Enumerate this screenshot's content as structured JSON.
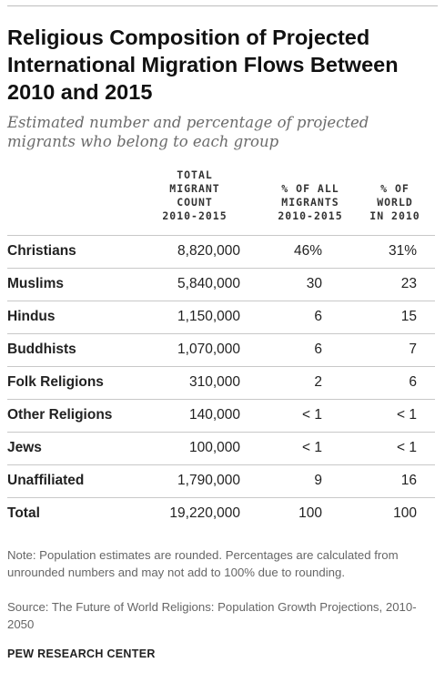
{
  "chart_data": {
    "type": "table",
    "title": "Religious Composition of Projected International Migration Flows Between 2010 and 2015",
    "subtitle": "Estimated number and percentage of projected migrants who belong to each group",
    "columns": [
      {
        "lines": [
          "TOTAL",
          "MIGRANT",
          "COUNT",
          "2010-2015"
        ]
      },
      {
        "lines": [
          "% OF ALL",
          "MIGRANTS",
          "2010-2015"
        ]
      },
      {
        "lines": [
          "% OF",
          "WORLD",
          "IN 2010"
        ]
      }
    ],
    "rows": [
      {
        "name": "Christians",
        "count": "8,820,000",
        "pct_migrants": "46%",
        "pct_world": "31%"
      },
      {
        "name": "Muslims",
        "count": "5,840,000",
        "pct_migrants": "30",
        "pct_world": "23"
      },
      {
        "name": "Hindus",
        "count": "1,150,000",
        "pct_migrants": "6",
        "pct_world": "15"
      },
      {
        "name": "Buddhists",
        "count": "1,070,000",
        "pct_migrants": "6",
        "pct_world": "7"
      },
      {
        "name": "Folk Religions",
        "count": "310,000",
        "pct_migrants": "2",
        "pct_world": "6"
      },
      {
        "name": "Other Religions",
        "count": "140,000",
        "pct_migrants": "< 1",
        "pct_world": "< 1"
      },
      {
        "name": "Jews",
        "count": "100,000",
        "pct_migrants": "< 1",
        "pct_world": "< 1"
      },
      {
        "name": "Unaffiliated",
        "count": "1,790,000",
        "pct_migrants": "9",
        "pct_world": "16"
      },
      {
        "name": "Total",
        "count": "19,220,000",
        "pct_migrants": "100",
        "pct_world": "100"
      }
    ],
    "note": "Note: Population estimates are rounded. Percentages are calculated from unrounded numbers and may not add to 100% due to rounding.",
    "source": "Source: The Future of World Religions: Population Growth Projections, 2010-2050",
    "brand": "PEW RESEARCH CENTER"
  }
}
